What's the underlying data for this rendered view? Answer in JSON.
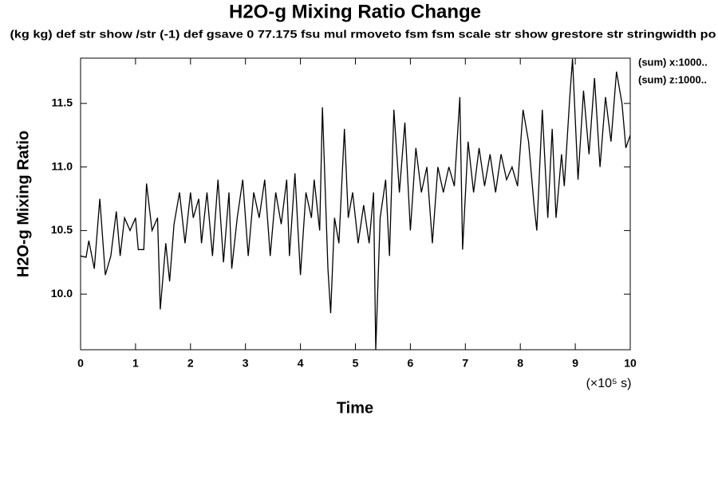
{
  "chart_data": {
    "type": "line",
    "title": "H2O-g Mixing Ratio Change",
    "subtitle": "(kg kg) def str show /str (-1) def gsave 0 77.175 fsu mul rmoveto fsm fsm scale str show grestore str stringwidth po",
    "ylabel": "H2O-g Mixing Ratio",
    "xlabel": "Time",
    "xunit": "(×10⁵ s)",
    "annotations": [
      "(sum) x:1000..",
      "(sum) z:1000.."
    ],
    "x": [
      0.0,
      0.1,
      0.15,
      0.25,
      0.35,
      0.45,
      0.55,
      0.65,
      0.72,
      0.8,
      0.9,
      1.0,
      1.05,
      1.15,
      1.2,
      1.3,
      1.4,
      1.45,
      1.55,
      1.62,
      1.7,
      1.8,
      1.9,
      2.0,
      2.05,
      2.15,
      2.2,
      2.3,
      2.4,
      2.5,
      2.6,
      2.7,
      2.75,
      2.85,
      2.95,
      3.05,
      3.15,
      3.25,
      3.35,
      3.45,
      3.55,
      3.65,
      3.75,
      3.8,
      3.9,
      4.0,
      4.1,
      4.2,
      4.25,
      4.35,
      4.4,
      4.5,
      4.55,
      4.62,
      4.7,
      4.8,
      4.87,
      4.95,
      5.05,
      5.15,
      5.25,
      5.33,
      5.37,
      5.45,
      5.55,
      5.62,
      5.7,
      5.8,
      5.9,
      6.0,
      6.1,
      6.2,
      6.3,
      6.4,
      6.5,
      6.6,
      6.7,
      6.8,
      6.9,
      6.95,
      7.05,
      7.15,
      7.25,
      7.35,
      7.45,
      7.55,
      7.65,
      7.75,
      7.85,
      7.95,
      8.05,
      8.15,
      8.25,
      8.3,
      8.4,
      8.5,
      8.58,
      8.65,
      8.75,
      8.8,
      8.9,
      8.95,
      9.05,
      9.15,
      9.25,
      9.35,
      9.45,
      9.55,
      9.65,
      9.75,
      9.85,
      9.92,
      10.0
    ],
    "series": [
      {
        "name": "H2O-g",
        "color": "#000000",
        "values": [
          10.3,
          10.29,
          10.42,
          10.2,
          10.75,
          10.15,
          10.3,
          10.65,
          10.3,
          10.6,
          10.5,
          10.6,
          10.35,
          10.35,
          10.87,
          10.5,
          10.6,
          9.88,
          10.4,
          10.1,
          10.55,
          10.8,
          10.4,
          10.8,
          10.6,
          10.75,
          10.4,
          10.8,
          10.3,
          10.9,
          10.25,
          10.8,
          10.2,
          10.6,
          10.9,
          10.3,
          10.8,
          10.6,
          10.9,
          10.3,
          10.8,
          10.55,
          10.9,
          10.3,
          10.95,
          10.15,
          10.8,
          10.6,
          10.9,
          10.5,
          11.47,
          10.2,
          9.85,
          10.6,
          10.4,
          11.3,
          10.6,
          10.8,
          10.4,
          10.7,
          10.4,
          10.8,
          9.56,
          10.6,
          10.9,
          10.3,
          11.45,
          10.8,
          11.35,
          10.5,
          11.15,
          10.8,
          11.0,
          10.4,
          11.0,
          10.8,
          11.0,
          10.85,
          11.55,
          10.35,
          11.2,
          10.8,
          11.15,
          10.85,
          11.1,
          10.8,
          11.1,
          10.9,
          11.0,
          10.85,
          11.45,
          11.2,
          10.7,
          10.5,
          11.45,
          10.6,
          11.3,
          10.6,
          11.1,
          10.85,
          11.55,
          11.85,
          10.9,
          11.6,
          11.1,
          11.7,
          11.0,
          11.55,
          11.2,
          11.75,
          11.5,
          11.15,
          11.25
        ]
      }
    ],
    "xlim": [
      0,
      10
    ],
    "xticks": [
      0,
      1,
      2,
      3,
      4,
      5,
      6,
      7,
      8,
      9,
      10
    ],
    "ylim": [
      9.5625,
      11.856
    ],
    "yticks": [
      {
        "value": 10,
        "label": "10.0"
      },
      10.5,
      {
        "value": 11,
        "label": "11.0"
      },
      11.5
    ],
    "grid": false
  }
}
